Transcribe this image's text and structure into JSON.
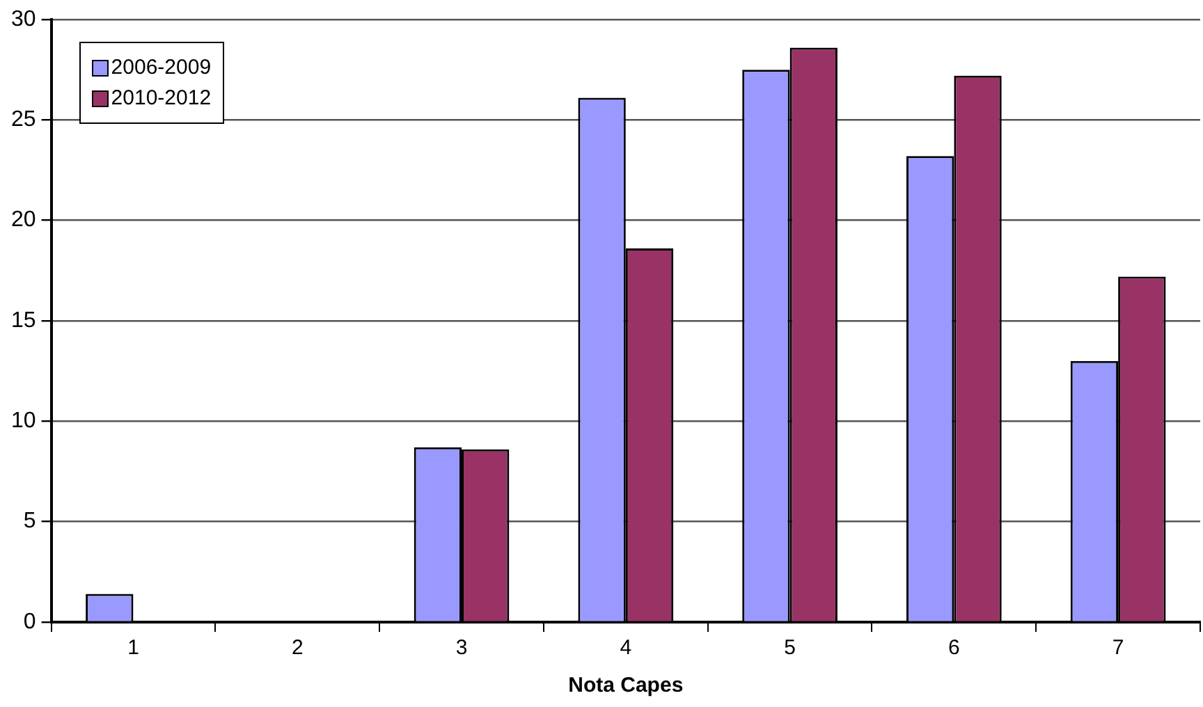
{
  "chart_data": {
    "type": "bar",
    "xlabel": "Nota Capes",
    "categories": [
      "1",
      "2",
      "3",
      "4",
      "5",
      "6",
      "7"
    ],
    "series": [
      {
        "name": "2006-2009",
        "color": "#9999ff",
        "values": [
          1.4,
          0,
          8.7,
          26.1,
          27.5,
          23.2,
          13.0
        ]
      },
      {
        "name": "2010-2012",
        "color": "#993366",
        "values": [
          0,
          0,
          8.6,
          18.6,
          28.6,
          27.2,
          17.2
        ]
      }
    ],
    "ylim": [
      0,
      30
    ],
    "yticks": [
      0,
      5,
      10,
      15,
      20,
      25,
      30
    ],
    "grid": "y",
    "legend": "top left"
  }
}
